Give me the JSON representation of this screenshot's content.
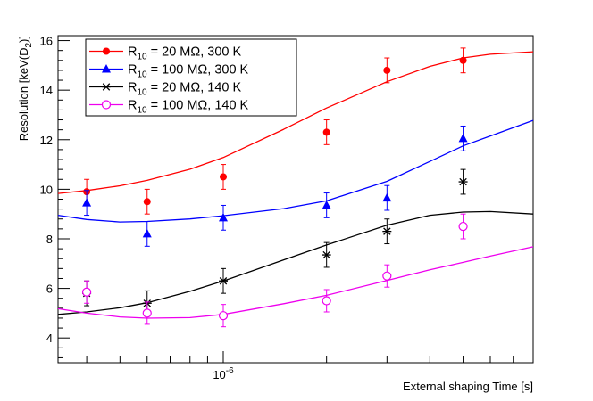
{
  "chart_data": {
    "type": "scatter",
    "title": "",
    "xlabel": "External shaping Time [s]",
    "ylabel": {
      "main": "Resolution [keV(D",
      "sub": "2",
      "tail": ")]"
    },
    "x_scale": "log",
    "xlim": [
      3.3e-07,
      8e-06
    ],
    "ylim": [
      3.0,
      16.2
    ],
    "grid": false,
    "legend_position": "top-left",
    "x_tick_label": {
      "base": "10",
      "exp": "-6",
      "value": 1e-06
    },
    "y_ticks": [
      4,
      6,
      8,
      10,
      12,
      14,
      16
    ],
    "y_tick_labels": [
      "4",
      "6",
      "8",
      "10",
      "12",
      "14",
      "16"
    ],
    "series": [
      {
        "name": {
          "pre": "R",
          "sub": "10",
          "post": " = 20 MΩ, 300 K"
        },
        "color": "#ff0000",
        "marker": "filled-circle",
        "points": [
          {
            "x": 4e-07,
            "y": 9.9,
            "err": 0.5
          },
          {
            "x": 6e-07,
            "y": 9.5,
            "err": 0.5
          },
          {
            "x": 1e-06,
            "y": 10.5,
            "err": 0.5
          },
          {
            "x": 2e-06,
            "y": 12.3,
            "err": 0.5
          },
          {
            "x": 3e-06,
            "y": 14.8,
            "err": 0.5
          },
          {
            "x": 5e-06,
            "y": 15.2,
            "err": 0.5
          }
        ],
        "curve": [
          [
            3.3e-07,
            9.83
          ],
          [
            4e-07,
            9.95
          ],
          [
            5e-07,
            10.14
          ],
          [
            6e-07,
            10.36
          ],
          [
            8e-07,
            10.81
          ],
          [
            1e-06,
            11.28
          ],
          [
            1.5e-06,
            12.42
          ],
          [
            2e-06,
            13.28
          ],
          [
            3e-06,
            14.34
          ],
          [
            4e-06,
            14.96
          ],
          [
            5e-06,
            15.3
          ],
          [
            6e-06,
            15.45
          ],
          [
            8e-06,
            15.55
          ]
        ]
      },
      {
        "name": {
          "pre": "R",
          "sub": "10",
          "post": " = 100 MΩ, 300 K"
        },
        "color": "#0000ff",
        "marker": "filled-triangle",
        "points": [
          {
            "x": 4e-07,
            "y": 9.45,
            "err": 0.5
          },
          {
            "x": 6e-07,
            "y": 8.2,
            "err": 0.5
          },
          {
            "x": 1e-06,
            "y": 8.85,
            "err": 0.5
          },
          {
            "x": 2e-06,
            "y": 9.35,
            "err": 0.5
          },
          {
            "x": 3e-06,
            "y": 9.65,
            "err": 0.5
          },
          {
            "x": 5e-06,
            "y": 12.05,
            "err": 0.5
          }
        ],
        "curve": [
          [
            3.3e-07,
            8.95
          ],
          [
            4e-07,
            8.78
          ],
          [
            5e-07,
            8.68
          ],
          [
            6e-07,
            8.7
          ],
          [
            8e-07,
            8.8
          ],
          [
            1e-06,
            8.93
          ],
          [
            1.5e-06,
            9.22
          ],
          [
            2e-06,
            9.53
          ],
          [
            3e-06,
            10.32
          ],
          [
            4e-06,
            11.12
          ],
          [
            5e-06,
            11.75
          ],
          [
            6e-06,
            12.15
          ],
          [
            8e-06,
            12.78
          ]
        ]
      },
      {
        "name": {
          "pre": "R",
          "sub": "10",
          "post": " = 20 MΩ, 140 K"
        },
        "color": "#000000",
        "marker": "asterisk",
        "points": [
          {
            "x": 4e-07,
            "y": 5.8,
            "err": 0.5
          },
          {
            "x": 6e-07,
            "y": 5.4,
            "err": 0.5
          },
          {
            "x": 1e-06,
            "y": 6.3,
            "err": 0.5
          },
          {
            "x": 2e-06,
            "y": 7.35,
            "err": 0.5
          },
          {
            "x": 3e-06,
            "y": 8.3,
            "err": 0.5
          },
          {
            "x": 5e-06,
            "y": 10.3,
            "err": 0.5
          }
        ],
        "curve": [
          [
            3.3e-07,
            4.95
          ],
          [
            4e-07,
            5.05
          ],
          [
            5e-07,
            5.22
          ],
          [
            6e-07,
            5.42
          ],
          [
            8e-07,
            5.88
          ],
          [
            1e-06,
            6.3
          ],
          [
            1.5e-06,
            7.15
          ],
          [
            2e-06,
            7.75
          ],
          [
            3e-06,
            8.55
          ],
          [
            4e-06,
            8.95
          ],
          [
            5e-06,
            9.08
          ],
          [
            6e-06,
            9.1
          ],
          [
            8e-06,
            9.0
          ]
        ]
      },
      {
        "name": {
          "pre": "R",
          "sub": "10",
          "post": " = 100 MΩ, 140 K"
        },
        "color": "#ee00ee",
        "marker": "open-circle",
        "points": [
          {
            "x": 4e-07,
            "y": 5.85,
            "err": 0.45
          },
          {
            "x": 6e-07,
            "y": 5.0,
            "err": 0.45
          },
          {
            "x": 1e-06,
            "y": 4.9,
            "err": 0.45
          },
          {
            "x": 2e-06,
            "y": 5.5,
            "err": 0.45
          },
          {
            "x": 3e-06,
            "y": 6.5,
            "err": 0.45
          },
          {
            "x": 5e-06,
            "y": 8.5,
            "err": 0.5
          }
        ],
        "curve": [
          [
            3.3e-07,
            5.18
          ],
          [
            4e-07,
            5.0
          ],
          [
            5e-07,
            4.85
          ],
          [
            6e-07,
            4.8
          ],
          [
            8e-07,
            4.82
          ],
          [
            1e-06,
            4.95
          ],
          [
            1.5e-06,
            5.38
          ],
          [
            2e-06,
            5.72
          ],
          [
            3e-06,
            6.32
          ],
          [
            4e-06,
            6.75
          ],
          [
            5e-06,
            7.05
          ],
          [
            6e-06,
            7.3
          ],
          [
            8e-06,
            7.68
          ]
        ]
      }
    ]
  }
}
